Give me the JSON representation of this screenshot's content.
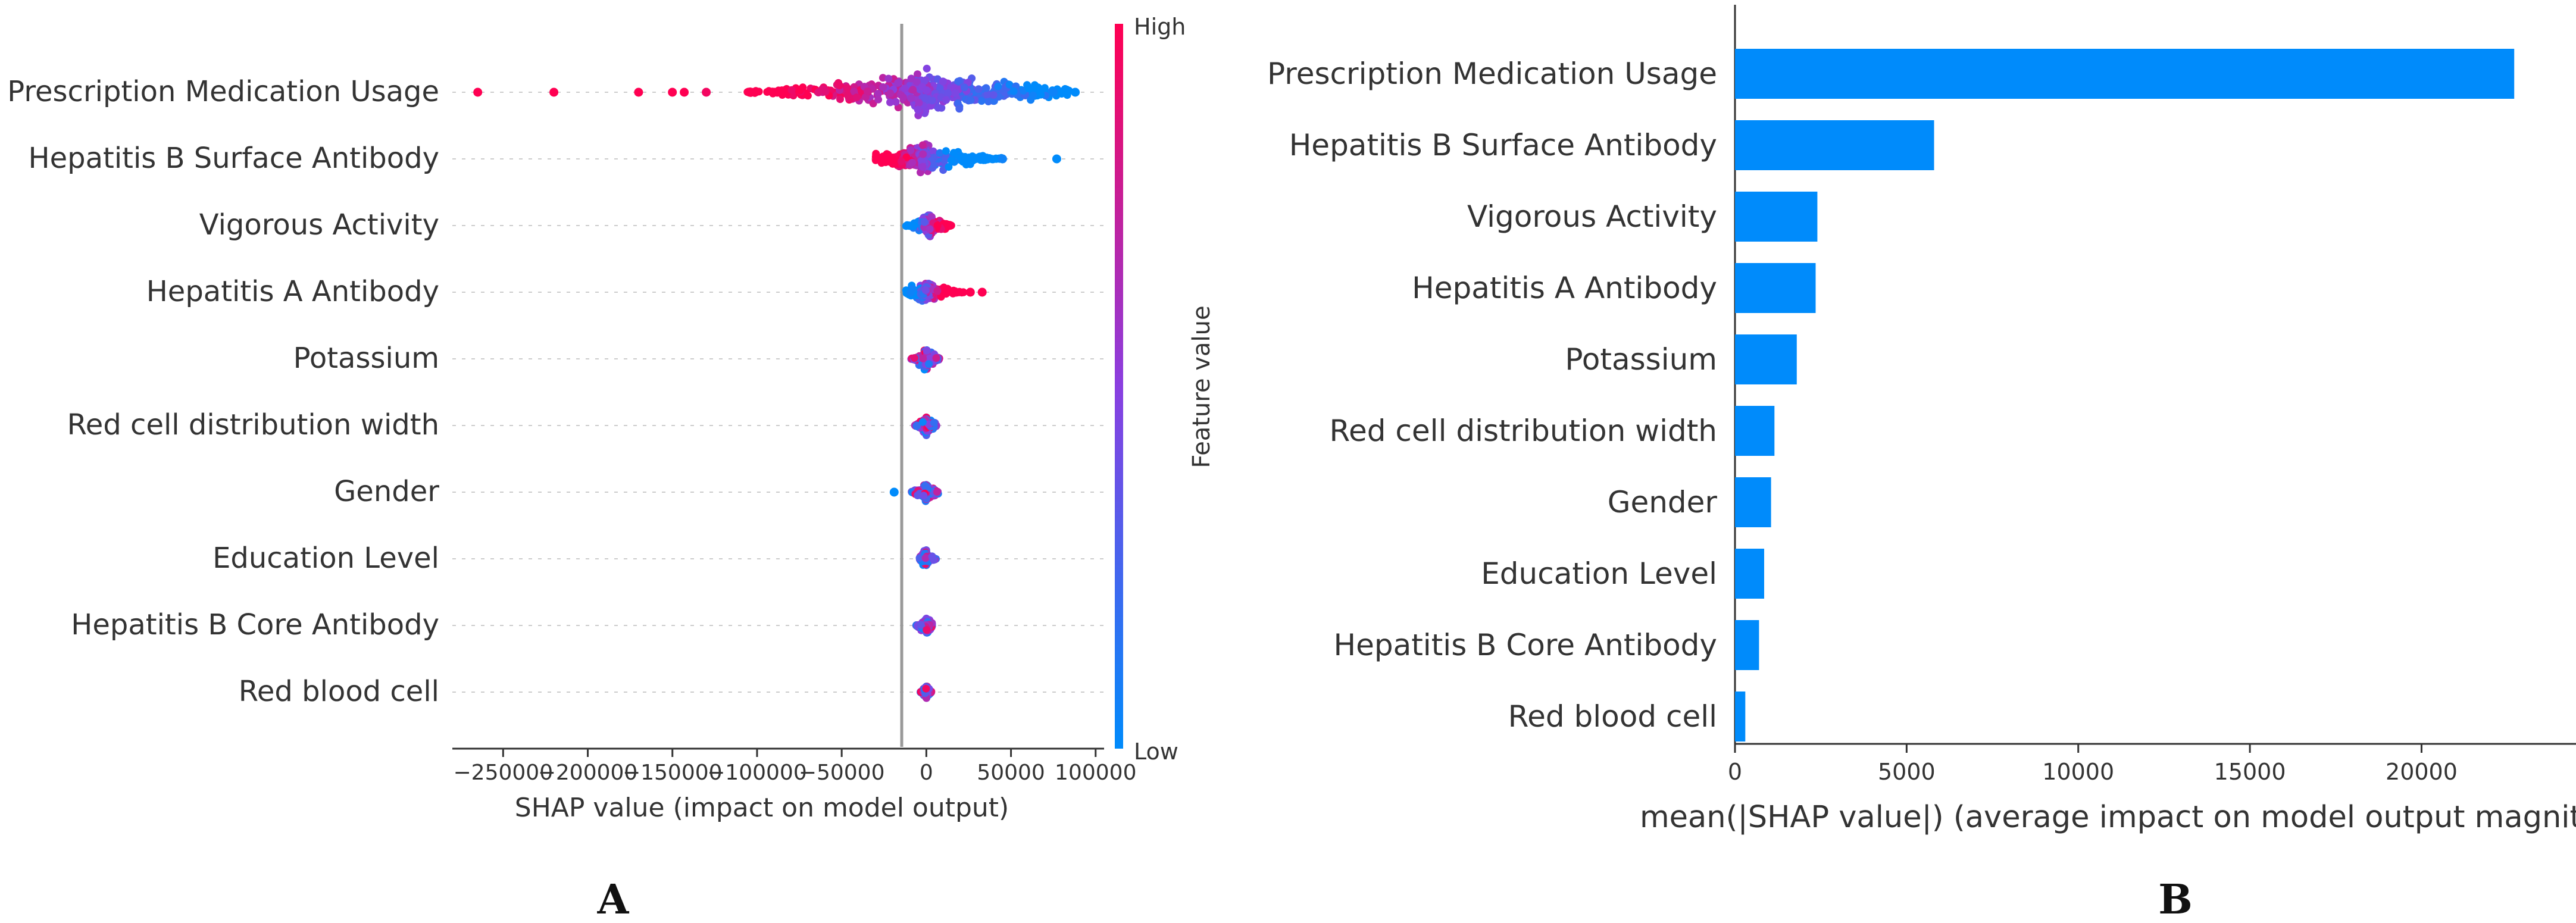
{
  "chart_data": [
    {
      "type": "scatter",
      "subtype": "shap-beeswarm",
      "title": "",
      "xlabel": "SHAP value (impact on model output)",
      "ylabel": "",
      "xlim": [
        -280000,
        105000
      ],
      "xticks": [
        -250000,
        -200000,
        -150000,
        -100000,
        -50000,
        0,
        50000,
        100000
      ],
      "xtick_labels": [
        "−250000",
        "−200000",
        "−150000",
        "−100000",
        "−50000",
        "0",
        "50000",
        "100000"
      ],
      "features": [
        "Prescription Medication Usage",
        "Hepatitis B Surface Antibody",
        "Vigorous Activity",
        "Hepatitis A Antibody",
        "Potassium",
        "Red cell distribution width",
        "Gender",
        "Education Level",
        "Hepatitis B Core Antibody",
        "Red blood cell"
      ],
      "feature_distributions": [
        {
          "feature": "Prescription Medication Usage",
          "core_min": -115000,
          "core_max": 85000,
          "center": 0,
          "width": 0.85,
          "outliers": [
            {
              "x": -265000,
              "v": 1
            },
            {
              "x": -220000,
              "v": 1
            },
            {
              "x": -170000,
              "v": 1
            },
            {
              "x": -150000,
              "v": 1
            },
            {
              "x": -143000,
              "v": 1
            },
            {
              "x": -130000,
              "v": 0.95
            },
            {
              "x": 75000,
              "v": 0.05
            },
            {
              "x": 88000,
              "v": 0
            }
          ]
        },
        {
          "feature": "Hepatitis B Surface Antibody",
          "core_min": -30000,
          "core_max": 45000,
          "center": -2000,
          "width": 0.6,
          "outliers": [
            {
              "x": 45000,
              "v": 0.05
            },
            {
              "x": 77000,
              "v": 0
            }
          ]
        },
        {
          "feature": "Vigorous Activity",
          "core_min": -12000,
          "core_max": 15000,
          "center": 2000,
          "width": 0.45,
          "outliers": []
        },
        {
          "feature": "Hepatitis A Antibody",
          "core_min": -12000,
          "core_max": 22000,
          "center": 0,
          "width": 0.45,
          "outliers": [
            {
              "x": 26000,
              "v": 1
            },
            {
              "x": 33000,
              "v": 1
            }
          ]
        },
        {
          "feature": "Potassium",
          "core_min": -9000,
          "core_max": 8000,
          "center": 0,
          "width": 0.45,
          "outliers": []
        },
        {
          "feature": "Red cell distribution width",
          "core_min": -7000,
          "core_max": 6000,
          "center": 0,
          "width": 0.4,
          "outliers": []
        },
        {
          "feature": "Gender",
          "core_min": -9000,
          "core_max": 7000,
          "center": 0,
          "width": 0.4,
          "outliers": [
            {
              "x": -19000,
              "v": 0
            }
          ]
        },
        {
          "feature": "Education Level",
          "core_min": -4000,
          "core_max": 6000,
          "center": 0,
          "width": 0.35,
          "outliers": []
        },
        {
          "feature": "Hepatitis B Core Antibody",
          "core_min": -6000,
          "core_max": 3500,
          "center": 0,
          "width": 0.35,
          "outliers": []
        },
        {
          "feature": "Red blood cell",
          "core_min": -3500,
          "core_max": 3000,
          "center": 0,
          "width": 0.3,
          "outliers": []
        }
      ],
      "colorbar": {
        "label": "Feature value",
        "high_label": "High",
        "low_label": "Low",
        "high_color": "#ff0052",
        "mid_color": "#8a3fe0",
        "low_color": "#008bfb"
      },
      "zero_line_color": "#999999",
      "panel_label": "A"
    },
    {
      "type": "bar",
      "orientation": "horizontal",
      "title": "",
      "xlabel": "mean(|SHAP value|) (average impact on model output magnit",
      "ylabel": "",
      "xlim": [
        0,
        24500
      ],
      "xticks": [
        0,
        5000,
        10000,
        15000,
        20000
      ],
      "xtick_labels": [
        "0",
        "5000",
        "10000",
        "15000",
        "20000"
      ],
      "categories": [
        "Prescription Medication Usage",
        "Hepatitis B Surface Antibody",
        "Vigorous Activity",
        "Hepatitis A Antibody",
        "Potassium",
        "Red cell distribution width",
        "Gender",
        "Education Level",
        "Hepatitis B Core Antibody",
        "Red blood cell"
      ],
      "values": [
        22700,
        5800,
        2400,
        2350,
        1800,
        1150,
        1050,
        850,
        700,
        300
      ],
      "bar_color": "#008bfb",
      "panel_label": "B"
    }
  ]
}
